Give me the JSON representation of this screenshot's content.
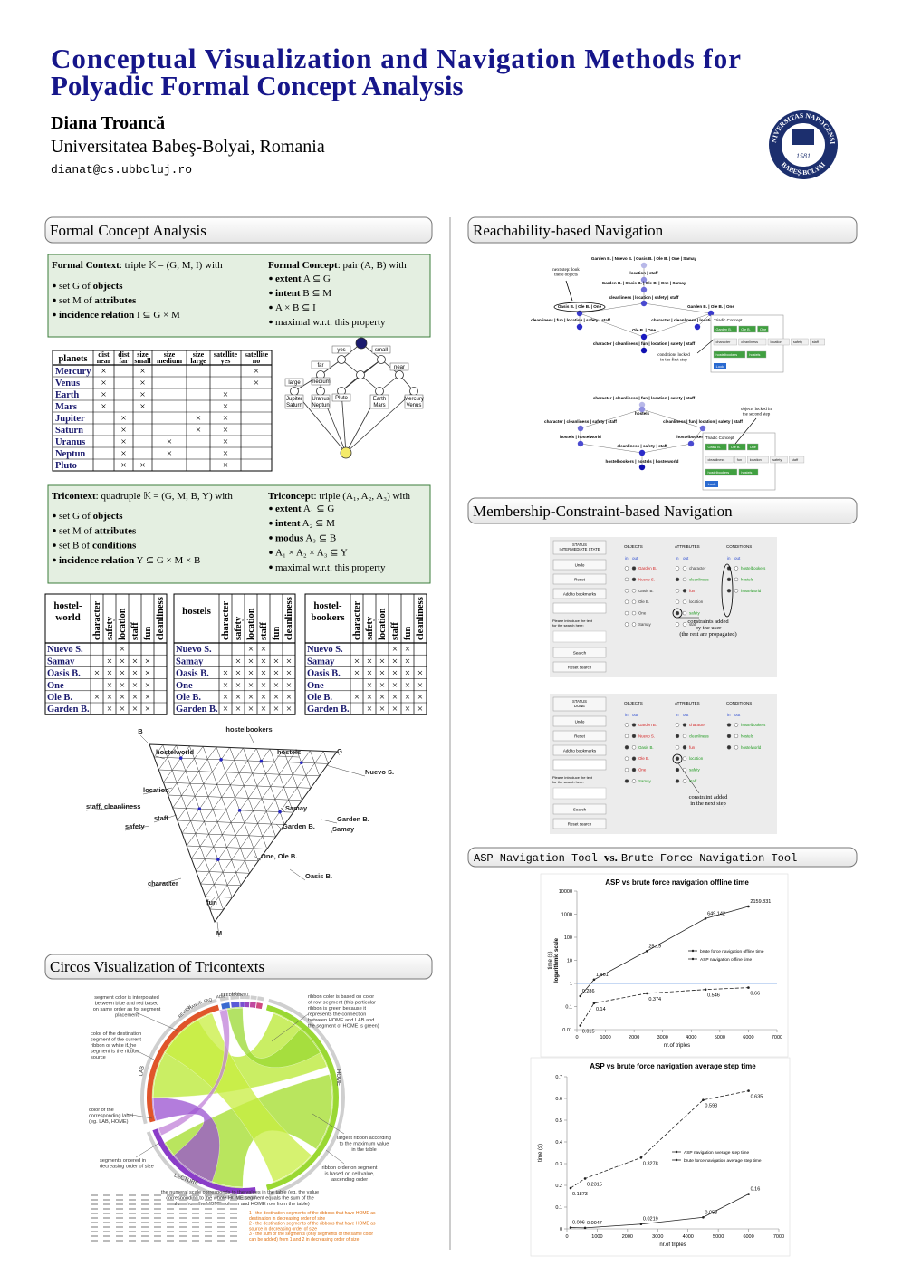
{
  "header": {
    "title": [
      "Conceptual Visualization and Navigation Methods for",
      "Polyadic Formal Concept Analysis"
    ],
    "author": "Diana Troancă",
    "affiliation": "Universitatea Babeş-Bolyai, Romania",
    "email": "dianat@cs.ubbcluj.ro",
    "seal": {
      "top": "UNIVERSITAS NAPOCENSIS",
      "bottom": "BABEŞ-BOLYAI",
      "year": "1581"
    }
  },
  "sections": {
    "fca": "Formal Concept Analysis",
    "circos": "Circos Visualization of Tricontexts",
    "reach": "Reachability-based Navigation",
    "member": "Membership-Constraint-based Navigation",
    "compare": [
      "ASP Navigation Tool ",
      "vs.",
      "Brute Force Navigation Tool"
    ]
  },
  "fca": {
    "boxes": [
      {
        "cols": [
          {
            "lead": [
              "Formal Context",
              ": triple 𝕂 = (G, M, I) with"
            ],
            "items": [
              [
                "set G of ",
                {
                  "b": "objects"
                }
              ],
              [
                "set M of ",
                {
                  "b": "attributes"
                }
              ],
              [
                {
                  "b": "incidence relation"
                },
                " I ⊆ G × M"
              ]
            ]
          },
          {
            "lead": [
              "Formal Concept",
              ": pair (A, B) with"
            ],
            "items": [
              [
                {
                  "b": "extent"
                },
                " A ⊆ G"
              ],
              [
                {
                  "b": "intent"
                },
                " B ⊆ M"
              ],
              [
                "A × B ⊆ I"
              ],
              [
                "maximal w.r.t. this property"
              ]
            ]
          }
        ]
      },
      {
        "cols": [
          {
            "lead": [
              "Tricontext",
              ": quadruple 𝕂 = (G, M, B, Y) with"
            ],
            "items": [
              [
                "set G of ",
                {
                  "b": "objects"
                }
              ],
              [
                "set M of ",
                {
                  "b": "attributes"
                }
              ],
              [
                "set B of ",
                {
                  "b": "conditions"
                }
              ],
              [
                {
                  "b": "incidence relation"
                },
                " Y ⊆ G × M × B"
              ]
            ]
          },
          {
            "lead": [
              "Triconcept",
              ": triple (A₁, A₂, A₃) with"
            ],
            "items": [
              [
                {
                  "b": "extent"
                },
                " A₁ ⊆ G"
              ],
              [
                {
                  "b": "intent"
                },
                " A₂ ⊆ M"
              ],
              [
                {
                  "b": "modus"
                },
                " A₃ ⊆ B"
              ],
              [
                "A₁ × A₂ × A₃ ⊆ Y"
              ],
              [
                "maximal w.r.t. this property"
              ]
            ]
          }
        ]
      }
    ]
  },
  "planets_table": {
    "header": "planets",
    "cross": "×",
    "attributes": [
      {
        "group": "dist",
        "name": "near"
      },
      {
        "group": "dist",
        "name": "far"
      },
      {
        "group": "size",
        "name": "small"
      },
      {
        "group": "size",
        "name": "medium"
      },
      {
        "group": "size",
        "name": "large"
      },
      {
        "group": "satellite",
        "name": "yes"
      },
      {
        "group": "satellite",
        "name": "no"
      }
    ],
    "rows": [
      {
        "name": "Mercury",
        "cells": [
          true,
          false,
          true,
          false,
          false,
          false,
          true
        ]
      },
      {
        "name": "Venus",
        "cells": [
          true,
          false,
          true,
          false,
          false,
          false,
          true
        ]
      },
      {
        "name": "Earth",
        "cells": [
          true,
          false,
          true,
          false,
          false,
          true,
          false
        ]
      },
      {
        "name": "Mars",
        "cells": [
          true,
          false,
          true,
          false,
          false,
          true,
          false
        ]
      },
      {
        "name": "Jupiter",
        "cells": [
          false,
          true,
          false,
          false,
          true,
          true,
          false
        ]
      },
      {
        "name": "Saturn",
        "cells": [
          false,
          true,
          false,
          false,
          true,
          true,
          false
        ]
      },
      {
        "name": "Uranus",
        "cells": [
          false,
          true,
          false,
          true,
          false,
          true,
          false
        ]
      },
      {
        "name": "Neptun",
        "cells": [
          false,
          true,
          false,
          true,
          false,
          true,
          false
        ]
      },
      {
        "name": "Pluto",
        "cells": [
          false,
          true,
          true,
          false,
          false,
          true,
          false
        ]
      }
    ]
  },
  "small_lattice": [
    [
      "yes"
    ],
    [
      "small"
    ],
    [
      "far"
    ],
    [
      "near"
    ],
    [
      "medium"
    ],
    [
      "large"
    ],
    [
      "Jupiter",
      "Saturn"
    ],
    [
      "Uranus",
      "Neptun"
    ],
    [
      "Pluto"
    ],
    [
      "Earth",
      "Mars"
    ],
    [
      "Mercury",
      "Venus"
    ]
  ],
  "tri_tables": {
    "cross": "×",
    "attributes": [
      "character",
      "safety",
      "location",
      "staff",
      "fun",
      "cleanliness"
    ],
    "objects": [
      "Nuevo S.",
      "Samay",
      "Oasis B.",
      "One",
      "Ole B.",
      "Garden B."
    ],
    "tables": [
      {
        "name": [
          "hostel-",
          "world"
        ],
        "cells": [
          [
            false,
            false,
            true,
            false,
            false,
            false
          ],
          [
            false,
            true,
            true,
            true,
            true,
            false
          ],
          [
            true,
            true,
            true,
            true,
            true,
            false
          ],
          [
            false,
            true,
            true,
            true,
            true,
            false
          ],
          [
            true,
            true,
            true,
            true,
            true,
            false
          ],
          [
            false,
            true,
            true,
            true,
            true,
            false
          ]
        ]
      },
      {
        "name": [
          "hostels"
        ],
        "cells": [
          [
            false,
            false,
            true,
            true,
            false,
            false
          ],
          [
            false,
            true,
            true,
            true,
            true,
            true
          ],
          [
            true,
            true,
            true,
            true,
            true,
            true
          ],
          [
            true,
            true,
            true,
            true,
            true,
            true
          ],
          [
            true,
            true,
            true,
            true,
            true,
            true
          ],
          [
            true,
            true,
            true,
            true,
            true,
            true
          ]
        ]
      },
      {
        "name": [
          "hostel-",
          "bookers"
        ],
        "cells": [
          [
            false,
            false,
            false,
            true,
            true,
            false
          ],
          [
            true,
            true,
            true,
            true,
            true,
            false
          ],
          [
            true,
            true,
            true,
            true,
            true,
            true
          ],
          [
            false,
            true,
            true,
            true,
            true,
            true
          ],
          [
            true,
            true,
            true,
            true,
            true,
            true
          ],
          [
            false,
            true,
            true,
            true,
            true,
            true
          ]
        ]
      }
    ]
  },
  "tri_lattice": [
    "B",
    "hostelbookers",
    "hostelworld",
    "hostels",
    "G",
    "Nuevo S.",
    "location",
    "staff, cleanliness",
    "staff",
    "safety",
    "Samay",
    "Garden B.",
    "Garden B.",
    "Samay",
    "One, Ole B.",
    "Oasis B.",
    "character",
    "fun",
    "M"
  ],
  "circos": {
    "segments": [
      "HOME",
      "LAB",
      "LECTURE",
      "REVIEW",
      "CHANGE",
      "FAQ",
      "ADM",
      "FEEDBACK",
      "LOGOUT"
    ],
    "notes": [
      [
        "segment color is interpolated",
        "between blue and red based",
        "on same order as for segment",
        "placement"
      ],
      [
        "color of the destination",
        "segment of the current",
        "ribbon or white if the",
        "segment is the ribbon",
        "source"
      ],
      [
        "color of the",
        "corresponding label",
        "(eg. LAB, HOME)"
      ],
      [
        "segments ordered in",
        "decreasing order of size"
      ],
      [
        "ribbon color is based on color",
        "of row segment (this particular",
        "ribbon is green because it",
        "represents the connection",
        "between HOME and LAB and",
        "the segment of HOME is green)"
      ],
      [
        "largest  ribbon according",
        "to the maximum value",
        "in the table"
      ],
      [
        "ribbon order on segment",
        "is based on cell value,",
        "ascending order"
      ],
      [
        "the numeral scale corresponds to the values in the table (eg. the value",
        "corresponding to the whole HOME segment equals the sum of the",
        "values from the HOME column and HOME row from the table)"
      ]
    ],
    "orange_notes": [
      "1 - the destination segments of the ribbons that have HOME as",
      "destination in decreasing order of size",
      "2 - the destination segments of the ribbons that have HOME as",
      "source in decreasing order of size",
      "3 - the sum of the segments (only segments of the same color",
      "can be added) from 1 and 2 in decreasing order of size"
    ]
  },
  "reach": {
    "panels": [
      {
        "nodes": [
          "Garden B. | Nuevo S. | Oasis B. | Ole B. | One | Samay",
          "location | staff",
          "Garden B. | Oasis B. | Ole B. | One | Samay",
          "cleanliness | location | safety | staff",
          "Oasis B. | Ole B. | One",
          "Garden B. | Ole B. | One",
          "cleanliness | fun | location | safety | staff",
          "character | cleanliness | location | safety | staff",
          "Ole B. | One",
          "character | cleanliness | fun | location | safety | staff"
        ],
        "notes": [
          [
            "next step: look",
            "these objects"
          ],
          [
            "conditions locked",
            "in the first step"
          ]
        ],
        "concept": {
          "title": "Triadic Concept",
          "objects": [
            "Garden B.",
            "Ole B.",
            "One"
          ],
          "attributes": [
            "character",
            "cleanliness",
            "location",
            "safety",
            "staff"
          ],
          "conditions": [
            "hostelbookers",
            "hostels"
          ],
          "button": "Look"
        }
      },
      {
        "nodes": [
          "character | cleanliness | fun | location | safety | staff",
          "hostels",
          "character | cleanliness | safety | staff",
          "cleanliness | fun | location | safety | staff",
          "hostels | hostelworld",
          "hostelbookers",
          "cleanliness | safety | staff",
          "hostelbookers | hostels | hostelworld"
        ],
        "notes": [
          [
            "objects locked in",
            "the second step"
          ]
        ],
        "concept": {
          "title": "Triadic Concept",
          "objects": [
            "Oasis B.",
            "Ole B.",
            "One"
          ],
          "attributes": [
            "cleanliness",
            "fun",
            "location",
            "safety",
            "staff"
          ],
          "conditions": [
            "hostelbookers",
            "hostels"
          ],
          "button": "Look"
        }
      }
    ]
  },
  "member": {
    "buttons": [
      "Undo",
      "Reset",
      "Add to bookmarks"
    ],
    "prompt": [
      "Please introduce the text",
      "for the search here:"
    ],
    "search_buttons": [
      "Search",
      "Reset search"
    ],
    "columns": [
      "OBJECTS",
      "ATTRIBUTES",
      "CONDITIONS"
    ],
    "in": "in",
    "out": "out",
    "lists": [
      [
        "Garden B.",
        "Nuevo S.",
        "Oasis B.",
        "Ole B.",
        "One",
        "Samay"
      ],
      [
        "character",
        "cleanliness",
        "fun",
        "location",
        "safety",
        "staff"
      ],
      [
        "hostelbookers",
        "hostels",
        "hostelworld"
      ]
    ],
    "in_color": "#1e9a1e",
    "out_color": "#d42020",
    "panels": [
      {
        "status": [
          "STATUS",
          "INTERMEDIATE STATE"
        ],
        "states": [
          [
            "out",
            "out",
            null,
            null,
            null,
            null
          ],
          [
            null,
            "in",
            "out",
            null,
            "in",
            null
          ],
          [
            "in",
            "in",
            "in"
          ]
        ],
        "note": [
          "constraints added",
          "by the user",
          "(the rest are propagated)"
        ]
      },
      {
        "status": [
          "STATUS",
          "DONE"
        ],
        "states": [
          [
            "out",
            "out",
            "in",
            "out",
            "out",
            "in"
          ],
          [
            "out",
            "in",
            "out",
            "in",
            "in",
            "in"
          ],
          [
            "in",
            "in",
            "in"
          ]
        ],
        "note": [
          "constraint added",
          "in the next step"
        ]
      }
    ]
  },
  "chart_data": [
    {
      "type": "line",
      "title": "ASP vs brute force navigation offline time",
      "xlabel": "nr.of triples",
      "ylabel": [
        "time (s)",
        "logarithmic scale"
      ],
      "log_y": true,
      "xlim": [
        0,
        7000
      ],
      "xticks": [
        0,
        1000,
        2000,
        3000,
        4000,
        5000,
        6000,
        7000
      ],
      "ylim": [
        0.01,
        10000
      ],
      "yticks": [
        0.01,
        0.1,
        1,
        10,
        100,
        1000,
        10000
      ],
      "reference_line": 1,
      "reference_color": "#6a9ae0",
      "legend": "center right",
      "x": [
        120,
        600,
        2450,
        4500,
        6000
      ],
      "series": [
        {
          "name": "brute force navigation offline time",
          "color": "#222222",
          "line_style": "solid",
          "values": [
            0.286,
            1.461,
            25.19,
            649.142,
            2159.831
          ]
        },
        {
          "name": "ASP navigation offline time",
          "color": "#222222",
          "line_style": "dashed",
          "values": [
            0.015,
            0.14,
            0.374,
            0.546,
            0.66
          ]
        }
      ]
    },
    {
      "type": "line",
      "title": "ASP vs brute force navigation average step time",
      "xlabel": "nr.of triples",
      "ylabel": [
        "time (s)"
      ],
      "log_y": false,
      "xlim": [
        0,
        7000
      ],
      "xticks": [
        0,
        1000,
        2000,
        3000,
        4000,
        5000,
        6000,
        7000
      ],
      "ylim": [
        0,
        0.7
      ],
      "yticks": [
        0,
        0.1,
        0.2,
        0.3,
        0.4,
        0.5,
        0.6,
        0.7
      ],
      "legend": "center right",
      "x": [
        120,
        600,
        2450,
        4500,
        6000
      ],
      "series": [
        {
          "name": "ASP navigation average step time",
          "color": "#222222",
          "line_style": "dashed",
          "values": [
            0.1873,
            0.2315,
            0.3278,
            0.593,
            0.635
          ]
        },
        {
          "name": "brute force navigation average step time",
          "color": "#222222",
          "line_style": "solid",
          "values": [
            0.006,
            0.0047,
            0.0219,
            0.053,
            0.16
          ]
        }
      ]
    }
  ]
}
